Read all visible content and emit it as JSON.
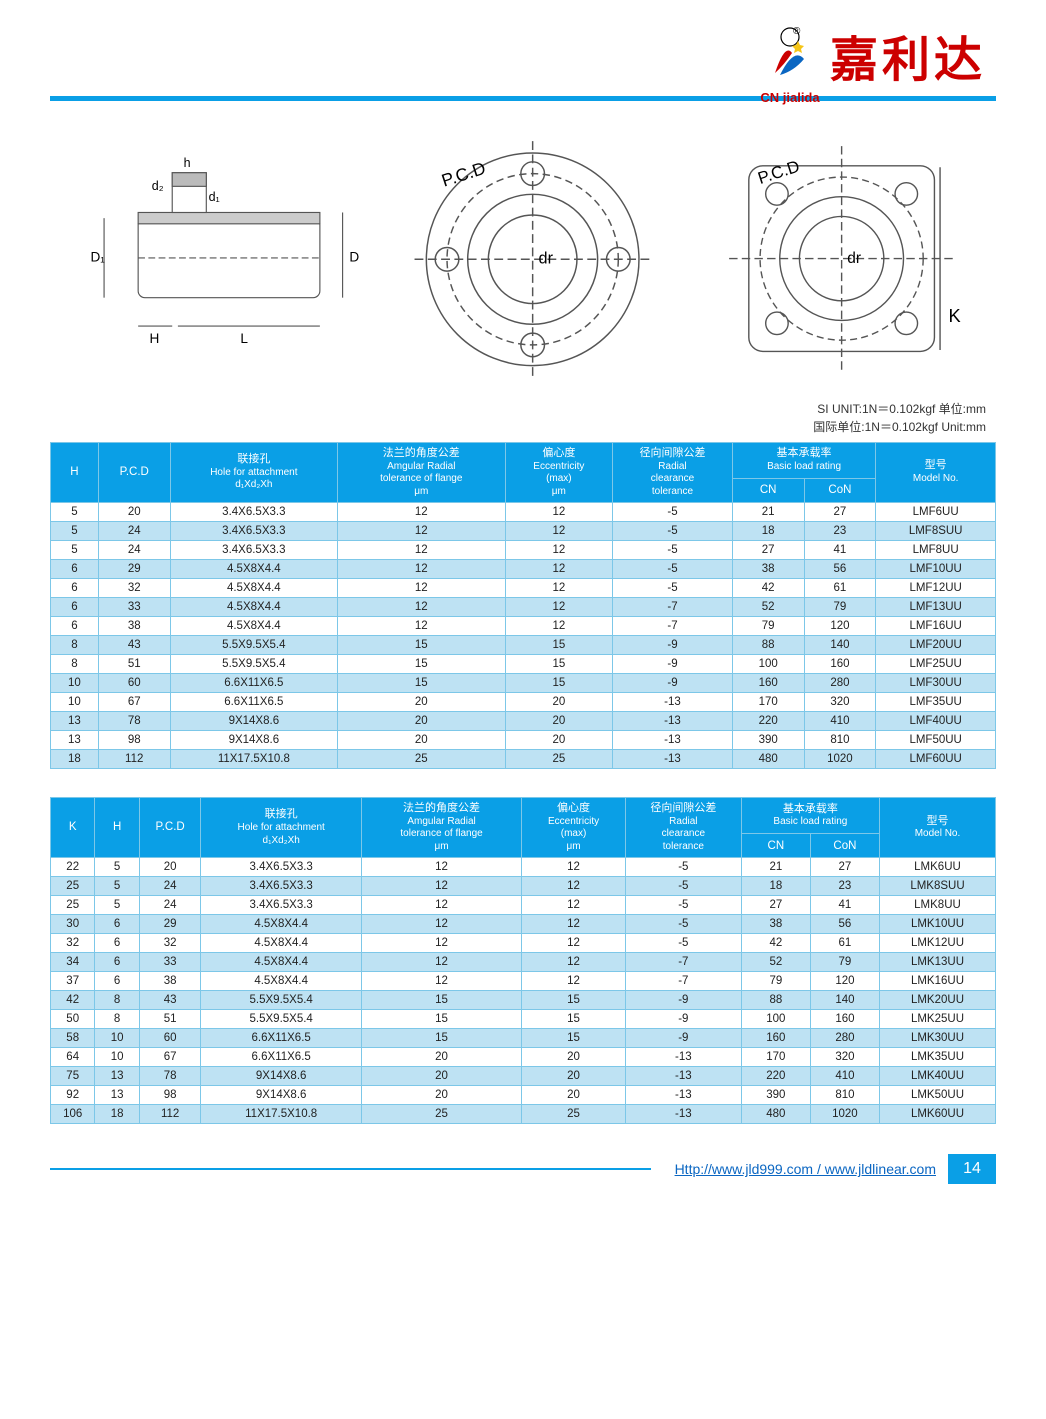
{
  "brand": {
    "sub": "CN jialida",
    "cn": "嘉利达"
  },
  "units": {
    "line1": "SI UNIT:1N＝0.102kgf   单位:mm",
    "line2": "国际单位:1N＝0.102kgf   Unit:mm"
  },
  "diagram_labels": {
    "h": "h",
    "d2": "d₂",
    "d1": "d₁",
    "D1": "D₁",
    "D": "D",
    "H": "H",
    "L": "L",
    "pcd": "P.C.D",
    "dr": "dr",
    "K": "K"
  },
  "headers": {
    "H": "H",
    "K": "K",
    "PCD": "P.C.D",
    "hole_cn": "联接孔",
    "hole_en": "Hole for attachment",
    "hole_sub": "d₁Xd₂Xh",
    "ang_cn": "法兰的角度公差",
    "ang_en": "Amgular Radial",
    "ang_en2": "tolerance of flange",
    "ang_unit": "μm",
    "ecc_cn": "偏心度",
    "ecc_en": "Eccentricity",
    "ecc_en2": "(max)",
    "ecc_unit": "μm",
    "rad_cn": "径向间隙公差",
    "rad_en": "Radial",
    "rad_en2": "clearance",
    "rad_en3": "tolerance",
    "load_cn": "基本承载率",
    "load_en": "Basic load rating",
    "CN": "CN",
    "CoN": "CoN",
    "model_cn": "型号",
    "model_en": "Model No."
  },
  "table1": {
    "cols_layout": [
      40,
      60,
      140,
      140,
      90,
      100,
      60,
      60,
      100
    ],
    "rows": [
      [
        "5",
        "20",
        "3.4X6.5X3.3",
        "12",
        "12",
        "-5",
        "21",
        "27",
        "LMF6UU"
      ],
      [
        "5",
        "24",
        "3.4X6.5X3.3",
        "12",
        "12",
        "-5",
        "18",
        "23",
        "LMF8SUU"
      ],
      [
        "5",
        "24",
        "3.4X6.5X3.3",
        "12",
        "12",
        "-5",
        "27",
        "41",
        "LMF8UU"
      ],
      [
        "6",
        "29",
        "4.5X8X4.4",
        "12",
        "12",
        "-5",
        "38",
        "56",
        "LMF10UU"
      ],
      [
        "6",
        "32",
        "4.5X8X4.4",
        "12",
        "12",
        "-5",
        "42",
        "61",
        "LMF12UU"
      ],
      [
        "6",
        "33",
        "4.5X8X4.4",
        "12",
        "12",
        "-7",
        "52",
        "79",
        "LMF13UU"
      ],
      [
        "6",
        "38",
        "4.5X8X4.4",
        "12",
        "12",
        "-7",
        "79",
        "120",
        "LMF16UU"
      ],
      [
        "8",
        "43",
        "5.5X9.5X5.4",
        "15",
        "15",
        "-9",
        "88",
        "140",
        "LMF20UU"
      ],
      [
        "8",
        "51",
        "5.5X9.5X5.4",
        "15",
        "15",
        "-9",
        "100",
        "160",
        "LMF25UU"
      ],
      [
        "10",
        "60",
        "6.6X11X6.5",
        "15",
        "15",
        "-9",
        "160",
        "280",
        "LMF30UU"
      ],
      [
        "10",
        "67",
        "6.6X11X6.5",
        "20",
        "20",
        "-13",
        "170",
        "320",
        "LMF35UU"
      ],
      [
        "13",
        "78",
        "9X14X8.6",
        "20",
        "20",
        "-13",
        "220",
        "410",
        "LMF40UU"
      ],
      [
        "13",
        "98",
        "9X14X8.6",
        "20",
        "20",
        "-13",
        "390",
        "810",
        "LMF50UU"
      ],
      [
        "18",
        "112",
        "11X17.5X10.8",
        "25",
        "25",
        "-13",
        "480",
        "1020",
        "LMF60UU"
      ]
    ]
  },
  "table2": {
    "cols_layout": [
      36,
      36,
      50,
      130,
      130,
      84,
      94,
      56,
      56,
      94
    ],
    "rows": [
      [
        "22",
        "5",
        "20",
        "3.4X6.5X3.3",
        "12",
        "12",
        "-5",
        "21",
        "27",
        "LMK6UU"
      ],
      [
        "25",
        "5",
        "24",
        "3.4X6.5X3.3",
        "12",
        "12",
        "-5",
        "18",
        "23",
        "LMK8SUU"
      ],
      [
        "25",
        "5",
        "24",
        "3.4X6.5X3.3",
        "12",
        "12",
        "-5",
        "27",
        "41",
        "LMK8UU"
      ],
      [
        "30",
        "6",
        "29",
        "4.5X8X4.4",
        "12",
        "12",
        "-5",
        "38",
        "56",
        "LMK10UU"
      ],
      [
        "32",
        "6",
        "32",
        "4.5X8X4.4",
        "12",
        "12",
        "-5",
        "42",
        "61",
        "LMK12UU"
      ],
      [
        "34",
        "6",
        "33",
        "4.5X8X4.4",
        "12",
        "12",
        "-7",
        "52",
        "79",
        "LMK13UU"
      ],
      [
        "37",
        "6",
        "38",
        "4.5X8X4.4",
        "12",
        "12",
        "-7",
        "79",
        "120",
        "LMK16UU"
      ],
      [
        "42",
        "8",
        "43",
        "5.5X9.5X5.4",
        "15",
        "15",
        "-9",
        "88",
        "140",
        "LMK20UU"
      ],
      [
        "50",
        "8",
        "51",
        "5.5X9.5X5.4",
        "15",
        "15",
        "-9",
        "100",
        "160",
        "LMK25UU"
      ],
      [
        "58",
        "10",
        "60",
        "6.6X11X6.5",
        "15",
        "15",
        "-9",
        "160",
        "280",
        "LMK30UU"
      ],
      [
        "64",
        "10",
        "67",
        "6.6X11X6.5",
        "20",
        "20",
        "-13",
        "170",
        "320",
        "LMK35UU"
      ],
      [
        "75",
        "13",
        "78",
        "9X14X8.6",
        "20",
        "20",
        "-13",
        "220",
        "410",
        "LMK40UU"
      ],
      [
        "92",
        "13",
        "98",
        "9X14X8.6",
        "20",
        "20",
        "-13",
        "390",
        "810",
        "LMK50UU"
      ],
      [
        "106",
        "18",
        "112",
        "11X17.5X10.8",
        "25",
        "25",
        "-13",
        "480",
        "1020",
        "LMK60UU"
      ]
    ]
  },
  "footer": {
    "url": "Http://www.jld999.com / www.jldlinear.com",
    "page": "14"
  },
  "colors": {
    "blue": "#0a9fe6",
    "row_alt": "#bee2f3",
    "border": "#7cc7e8",
    "red": "#c00",
    "link": "#0a66c2"
  }
}
